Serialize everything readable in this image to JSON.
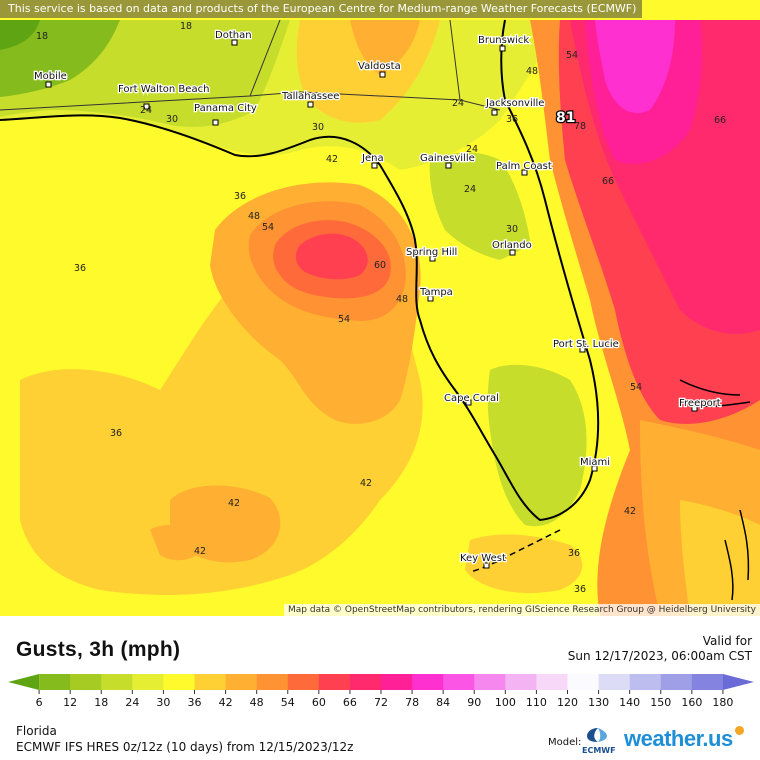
{
  "disclaimer": "This service is based on data and products of the European Centre for Medium-range Weather Forecasts (ECMWF)",
  "attribution": "Map data © OpenStreetMap contributors, rendering GIScience Research Group @ Heidelberg University",
  "map": {
    "region": "Florida",
    "parameter": "Gusts, 3h",
    "units": "mph",
    "max_value_marker": "81",
    "cities": [
      {
        "name": "Mobile"
      },
      {
        "name": "Fort Walton Beach"
      },
      {
        "name": "Panama City"
      },
      {
        "name": "Dothan"
      },
      {
        "name": "Tallahassee"
      },
      {
        "name": "Valdosta"
      },
      {
        "name": "Brunswick"
      },
      {
        "name": "Jacksonville"
      },
      {
        "name": "Gainesville"
      },
      {
        "name": "Jena"
      },
      {
        "name": "Palm Coast"
      },
      {
        "name": "Orlando"
      },
      {
        "name": "Spring Hill"
      },
      {
        "name": "Tampa"
      },
      {
        "name": "Port St. Lucie"
      },
      {
        "name": "Cape Coral"
      },
      {
        "name": "Freeport"
      },
      {
        "name": "Miami"
      },
      {
        "name": "Key West"
      }
    ],
    "contour_labels": [
      "18",
      "18",
      "24",
      "30",
      "30",
      "24",
      "36",
      "36",
      "42",
      "48",
      "54",
      "60",
      "48",
      "54",
      "36",
      "42",
      "42",
      "42",
      "24",
      "30",
      "36",
      "24",
      "48",
      "54",
      "78",
      "66",
      "66",
      "54",
      "42",
      "36",
      "36"
    ]
  },
  "legend": {
    "title": "Gusts, 3h (mph)",
    "ticks": [
      "6",
      "12",
      "18",
      "24",
      "30",
      "36",
      "42",
      "48",
      "54",
      "60",
      "66",
      "72",
      "78",
      "84",
      "90",
      "100",
      "110",
      "120",
      "130",
      "140",
      "150",
      "160",
      "180"
    ],
    "colors": [
      "#5fa513",
      "#86bb1d",
      "#a6cc24",
      "#c6dd2c",
      "#e6ee34",
      "#fffa2c",
      "#ffd033",
      "#ffb032",
      "#ff9232",
      "#ff6a3a",
      "#ff4050",
      "#ff2a6e",
      "#ff1f96",
      "#ff2fd0",
      "#fb55e6",
      "#f687ee",
      "#f4b4f3",
      "#f8d8f8",
      "#fbfbff",
      "#dcdcf6",
      "#bdbdf0",
      "#9f9fe8",
      "#8484e0",
      "#6b6bd8"
    ]
  },
  "valid": {
    "label": "Valid for",
    "datetime": "Sun 12/17/2023, 06:00am CST"
  },
  "footer": {
    "region": "Florida",
    "model_run": "ECMWF IFS HRES 0z/12z (10 days) from 12/15/2023/12z",
    "model_label": "Model:",
    "model_logo_text": "ECMWF",
    "brand": "weather.us"
  }
}
